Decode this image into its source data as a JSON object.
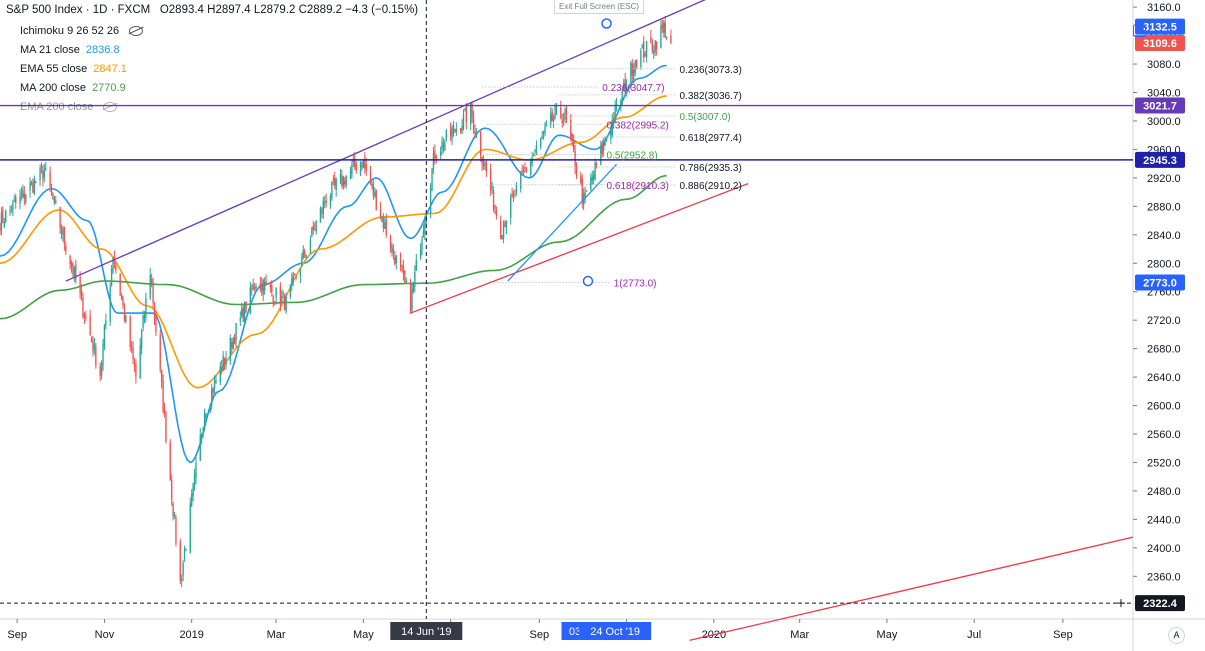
{
  "header": {
    "title": "S&P 500 Index · 1D · FXCM",
    "ohlc": "O2893.4  H2897.4  L2879.2  C2889.2  −4.3 (−0.15%)"
  },
  "indicators": [
    {
      "label": "Ichimoku 9 26 52 26",
      "value": "",
      "color": "#787b86",
      "hidden": true
    },
    {
      "label": "MA 21 close",
      "value": "2836.8",
      "color": "#2196f3",
      "hidden": false
    },
    {
      "label": "EMA 55 close",
      "value": "2847.1",
      "color": "#ff9800",
      "hidden": false
    },
    {
      "label": "MA 200 close",
      "value": "2770.9",
      "color": "#43a047",
      "hidden": false
    },
    {
      "label": "EMA 200 close",
      "value": "",
      "color": "#787b86",
      "hidden": true
    }
  ],
  "exit_fullscreen": "Exit Full Screen (ESC)",
  "auto_label": "A",
  "colors": {
    "up": "#26a69a",
    "down": "#ef5350",
    "purple": "#673ab7",
    "blue_line": "#1e22aa",
    "red_trend": "#f23645",
    "fib": "#9c27b0",
    "price_red": "#ef5350",
    "axis_blue": "#2962ff"
  },
  "chart_data": {
    "type": "candlestick",
    "yaxis": {
      "min": 2300,
      "max": 3170,
      "ticks": [
        3160,
        3120,
        3080,
        3040,
        3000,
        2960,
        2920,
        2880,
        2840,
        2800,
        2760,
        2720,
        2680,
        2640,
        2600,
        2560,
        2520,
        2480,
        2440,
        2400,
        2360
      ]
    },
    "xaxis": {
      "ticks": [
        "Sep",
        "Nov",
        "2019",
        "Mar",
        "May",
        "Jul",
        "Sep",
        "Nov",
        "2020",
        "Mar",
        "May",
        "Jul",
        "Sep"
      ],
      "tick_dates": [
        "2018-09-01",
        "2018-11-01",
        "2019-01-01",
        "2019-03-01",
        "2019-05-01",
        "2019-07-01",
        "2019-09-01",
        "2019-11-01",
        "2020-01-01",
        "2020-03-01",
        "2020-05-01",
        "2020-07-01",
        "2020-09-01"
      ],
      "start": "2018-08-20",
      "end": "2020-10-20",
      "highlight_labels": [
        {
          "label": "14 Jun '19",
          "date": "2019-06-14",
          "style": "dark"
        },
        {
          "label": "03 Oct",
          "date": "2019-10-03",
          "style": "blue"
        },
        {
          "label": "24 Oct '19",
          "date": "2019-10-24",
          "style": "blue"
        }
      ]
    },
    "price_labels": [
      {
        "value": 3132.5,
        "text": "3132.5",
        "color": "#2962ff"
      },
      {
        "value": 3109.6,
        "text": "3109.6",
        "color": "#ef5350"
      },
      {
        "value": 3021.7,
        "text": "3021.7",
        "color": "#673ab7"
      },
      {
        "value": 2945.3,
        "text": "2945.3",
        "color": "#1e22aa"
      },
      {
        "value": 2773.0,
        "text": "2773.0",
        "color": "#2962ff"
      },
      {
        "value": 2322.4,
        "text": "2322.4",
        "color": "#131722"
      }
    ],
    "horizontal_lines": [
      {
        "value": 3021.7,
        "color": "#673ab7",
        "style": "solid"
      },
      {
        "value": 2945.3,
        "color": "#1e22aa",
        "style": "solid"
      },
      {
        "value": 2322.4,
        "color": "#131722",
        "style": "dashed"
      }
    ],
    "vertical_cursor": {
      "date": "2019-06-14"
    },
    "close_anchors": [
      [
        "2018-08-20",
        2858
      ],
      [
        "2018-09-20",
        2930
      ],
      [
        "2018-10-10",
        2790
      ],
      [
        "2018-10-29",
        2645
      ],
      [
        "2018-11-07",
        2813
      ],
      [
        "2018-11-23",
        2640
      ],
      [
        "2018-12-03",
        2790
      ],
      [
        "2018-12-24",
        2351
      ],
      [
        "2019-01-10",
        2595
      ],
      [
        "2019-02-15",
        2775
      ],
      [
        "2019-03-08",
        2745
      ],
      [
        "2019-04-05",
        2893
      ],
      [
        "2019-04-30",
        2946
      ],
      [
        "2019-06-03",
        2745
      ],
      [
        "2019-06-20",
        2955
      ],
      [
        "2019-07-15",
        3014
      ],
      [
        "2019-08-05",
        2847
      ],
      [
        "2019-08-22",
        2930
      ],
      [
        "2019-09-12",
        3009
      ],
      [
        "2019-09-19",
        3007
      ],
      [
        "2019-10-02",
        2887
      ],
      [
        "2019-10-24",
        3010
      ],
      [
        "2019-11-07",
        3088
      ],
      [
        "2019-11-21",
        3110
      ],
      [
        "2019-11-27",
        3132
      ],
      [
        "2019-12-02",
        3109
      ]
    ],
    "moving_averages": [
      {
        "name": "MA 21 close",
        "color": "#2196f3",
        "anchors": [
          [
            "2018-08-20",
            2810
          ],
          [
            "2018-09-25",
            2905
          ],
          [
            "2018-10-20",
            2860
          ],
          [
            "2018-11-10",
            2730
          ],
          [
            "2018-12-05",
            2730
          ],
          [
            "2018-12-31",
            2520
          ],
          [
            "2019-01-20",
            2620
          ],
          [
            "2019-02-20",
            2770
          ],
          [
            "2019-03-20",
            2800
          ],
          [
            "2019-04-20",
            2880
          ],
          [
            "2019-05-10",
            2920
          ],
          [
            "2019-06-03",
            2835
          ],
          [
            "2019-06-25",
            2900
          ],
          [
            "2019-07-25",
            2990
          ],
          [
            "2019-08-25",
            2920
          ],
          [
            "2019-09-15",
            2980
          ],
          [
            "2019-10-10",
            2960
          ],
          [
            "2019-11-10",
            3060
          ],
          [
            "2019-11-29",
            3078
          ]
        ]
      },
      {
        "name": "EMA 55 close",
        "color": "#ff9800",
        "anchors": [
          [
            "2018-08-20",
            2800
          ],
          [
            "2018-09-30",
            2875
          ],
          [
            "2018-10-30",
            2820
          ],
          [
            "2018-12-01",
            2740
          ],
          [
            "2019-01-05",
            2625
          ],
          [
            "2019-02-15",
            2700
          ],
          [
            "2019-04-01",
            2820
          ],
          [
            "2019-05-15",
            2865
          ],
          [
            "2019-06-20",
            2870
          ],
          [
            "2019-07-25",
            2960
          ],
          [
            "2019-08-25",
            2945
          ],
          [
            "2019-09-30",
            2970
          ],
          [
            "2019-10-30",
            3005
          ],
          [
            "2019-11-29",
            3035
          ]
        ]
      },
      {
        "name": "MA 200 close",
        "color": "#43a047",
        "anchors": [
          [
            "2018-08-20",
            2722
          ],
          [
            "2018-10-01",
            2762
          ],
          [
            "2018-11-01",
            2775
          ],
          [
            "2018-12-15",
            2770
          ],
          [
            "2019-02-01",
            2742
          ],
          [
            "2019-03-15",
            2745
          ],
          [
            "2019-05-01",
            2770
          ],
          [
            "2019-06-15",
            2772
          ],
          [
            "2019-08-01",
            2790
          ],
          [
            "2019-09-15",
            2830
          ],
          [
            "2019-11-01",
            2890
          ],
          [
            "2019-11-29",
            2923
          ]
        ]
      }
    ],
    "trend_lines": [
      {
        "color": "#673ab7",
        "from": [
          "2018-10-05",
          2775
        ],
        "to": [
          "2019-12-31",
          3175
        ]
      },
      {
        "color": "#f23645",
        "from": [
          "2019-06-03",
          2730
        ],
        "to": [
          "2020-01-25",
          2912
        ]
      },
      {
        "color": "#f23645",
        "from": [
          "2019-12-15",
          2270
        ],
        "to": [
          "2020-10-20",
          2415
        ]
      },
      {
        "color": "#2196f3",
        "from": [
          "2019-08-10",
          2775
        ],
        "to": [
          "2019-10-25",
          2939
        ]
      }
    ],
    "fib_levels": [
      {
        "text": "0.236(3073.3)",
        "value": 3073.3,
        "date": "2019-12-08",
        "color": "#131722"
      },
      {
        "text": "0.382(3036.7)",
        "value": 3036.7,
        "date": "2019-12-08",
        "color": "#131722"
      },
      {
        "text": "0.5(3007.0)",
        "value": 3007.0,
        "date": "2019-12-08",
        "color": "#43a047"
      },
      {
        "text": "0.618(2977.4)",
        "value": 2977.4,
        "date": "2019-12-08",
        "color": "#131722"
      },
      {
        "text": "0.786(2935.3)",
        "value": 2935.3,
        "date": "2019-12-08",
        "color": "#131722"
      },
      {
        "text": "0.886(2910.2)",
        "value": 2910.2,
        "date": "2019-12-08",
        "color": "#131722"
      },
      {
        "text": "0.236(3047.7)",
        "value": 3047.7,
        "date": "2019-10-15",
        "color": "#9c27b0"
      },
      {
        "text": "0.382(2995.2)",
        "value": 2995.2,
        "date": "2019-10-18",
        "color": "#9c27b0"
      },
      {
        "text": "0.5(2952.8)",
        "value": 2952.8,
        "date": "2019-10-18",
        "color": "#43a047"
      },
      {
        "text": "0.618(2910.3)",
        "value": 2910.3,
        "date": "2019-10-18",
        "color": "#9c27b0"
      },
      {
        "text": "1(2773.0)",
        "value": 2773.0,
        "date": "2019-10-23",
        "color": "#9c27b0"
      }
    ],
    "markers": [
      {
        "date": "2019-10-18",
        "value": 3137
      },
      {
        "date": "2019-10-05",
        "value": 2775
      }
    ]
  }
}
